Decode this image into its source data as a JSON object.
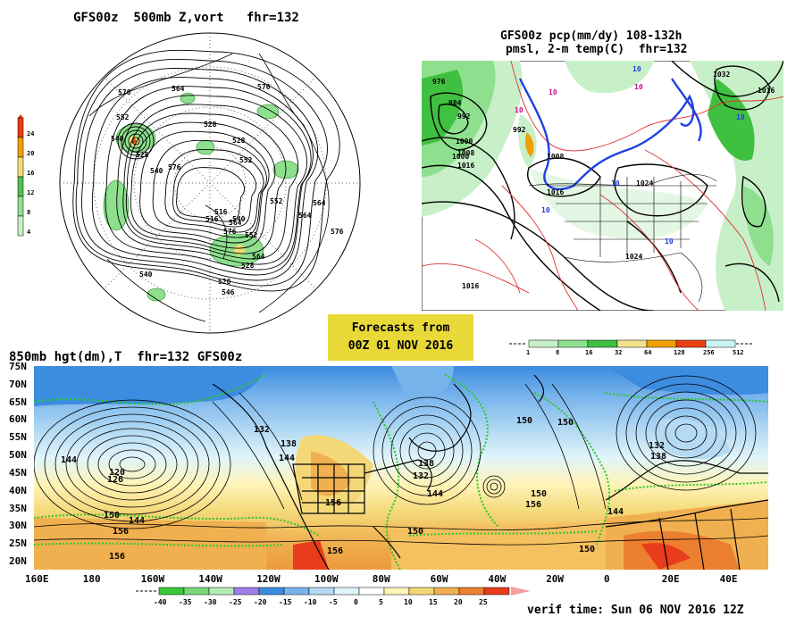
{
  "panel_500mb": {
    "title": "GFS00z  500mb Z,vort   fhr=132",
    "legend_ticks": [
      "24",
      "20",
      "16",
      "12",
      "8",
      "4"
    ],
    "legend_colors": [
      "#e83c10",
      "#f0a000",
      "#f2dc78",
      "#50c050",
      "#8ee08e",
      "#c8f0c8"
    ],
    "contour_labels": [
      "576",
      "564",
      "552",
      "540",
      "528",
      "516",
      "552",
      "564",
      "576",
      "528",
      "540",
      "576",
      "564",
      "552",
      "564",
      "576",
      "528",
      "546",
      "540",
      "552",
      "516",
      "528",
      "540",
      "528",
      "564",
      "576"
    ]
  },
  "panel_precip": {
    "title_line1": "GFS00z pcp(mm/dy) 108-132h",
    "title_line2": "pmsl, 2-m temp(C)  fhr=132",
    "isobar_labels": [
      "976",
      "984",
      "992",
      "1000",
      "1008",
      "1016",
      "992",
      "1000",
      "1008",
      "1016",
      "1024",
      "1016",
      "1024",
      "1032",
      "1016"
    ],
    "temp_labels": [
      "10",
      "10",
      "10",
      "10",
      "10",
      "10",
      "10",
      "10"
    ],
    "legend_ticks": [
      "1",
      "8",
      "16",
      "32",
      "64",
      "128",
      "256",
      "512"
    ],
    "legend_colors": [
      "#c8f0c8",
      "#8ee08e",
      "#40c040",
      "#f2e08c",
      "#f0a000",
      "#e84010",
      "#c8f4f4"
    ]
  },
  "forecast_box": {
    "line1": "Forecasts from",
    "line2": "00Z 01 NOV 2016"
  },
  "panel_850mb": {
    "title": "850mb hgt(dm),T  fhr=132 GFS00z",
    "lat_labels": [
      "75N",
      "70N",
      "65N",
      "60N",
      "55N",
      "50N",
      "45N",
      "40N",
      "35N",
      "30N",
      "25N",
      "20N"
    ],
    "lon_labels": [
      "160E",
      "180",
      "160W",
      "140W",
      "120W",
      "100W",
      "80W",
      "60W",
      "40W",
      "20W",
      "0",
      "20E",
      "40E"
    ],
    "height_labels": [
      "144",
      "126",
      "120",
      "150",
      "156",
      "156",
      "132",
      "138",
      "144",
      "156",
      "150",
      "144",
      "150",
      "138",
      "132",
      "144",
      "150",
      "156",
      "132",
      "138",
      "144",
      "150",
      "156",
      "150"
    ],
    "legend_ticks": [
      "-40",
      "-35",
      "-30",
      "-25",
      "-20",
      "-15",
      "-10",
      "-5",
      "0",
      "5",
      "10",
      "15",
      "20",
      "25"
    ],
    "legend_colors": [
      "#38c838",
      "#7ad87a",
      "#b4ecb4",
      "#a080e8",
      "#3c8ce0",
      "#78b4ec",
      "#b4daf4",
      "#e0f4fa",
      "#ffffff",
      "#fff4b8",
      "#f4d878",
      "#f0b050",
      "#ec8030",
      "#e83c1c"
    ]
  },
  "verif_time": "verif time: Sun 06 NOV 2016 12Z"
}
